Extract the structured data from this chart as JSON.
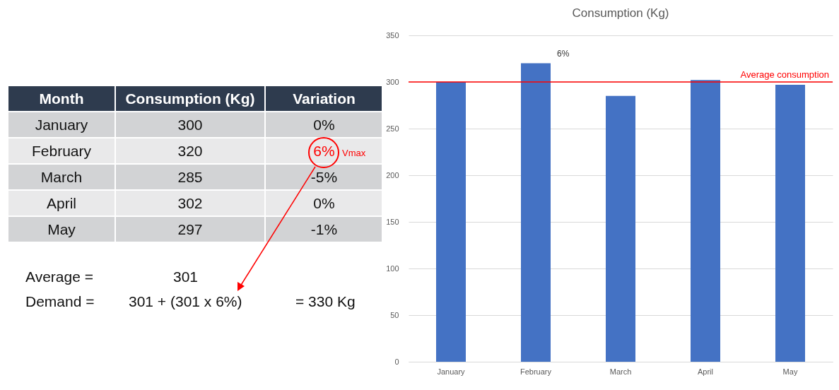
{
  "chart_data": [
    {
      "type": "other",
      "annotations": [
        "Month",
        "Consumption (Kg)",
        "Variation",
        "January",
        "300",
        "0%",
        "February",
        "320",
        "6%",
        "March",
        "285",
        "-5%",
        "April",
        "302",
        "0%",
        "May",
        "297",
        "-1%",
        "Vmax",
        "Average =",
        "301",
        "Demand =",
        "301 + (301 x 6%)",
        "= 330 Kg"
      ]
    },
    {
      "type": "bar",
      "title": "Consumption (Kg)",
      "categories": [
        "January",
        "February",
        "March",
        "April",
        "May"
      ],
      "values": [
        300,
        320,
        285,
        302,
        297
      ],
      "color": "#4472c4",
      "ylim": [
        0,
        350
      ],
      "yticks": [
        0,
        50,
        100,
        150,
        200,
        250,
        300,
        350
      ],
      "grid": "y",
      "ref_lines": [
        {
          "axis": "y",
          "value": 300,
          "label": "Average consumption",
          "color": "#ff0000"
        }
      ],
      "annotations": [
        {
          "text": "6%",
          "x": "February",
          "y": 320
        }
      ]
    }
  ]
}
